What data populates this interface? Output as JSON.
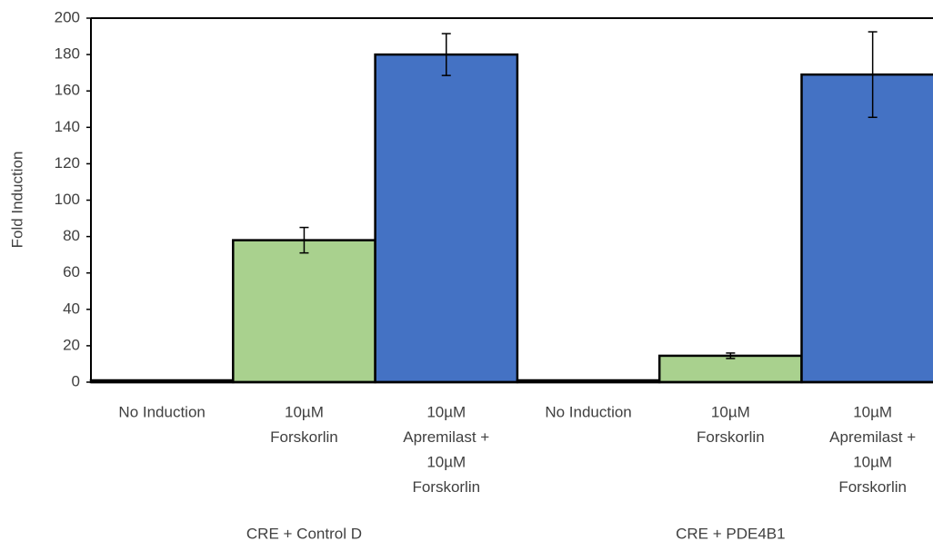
{
  "chart_data": {
    "type": "bar",
    "y_label": "Fold Induction",
    "categories": [
      [
        "No Induction"
      ],
      [
        "10µM",
        "Forskorlin"
      ],
      [
        "10µM",
        "Apremilast +",
        "10µM",
        "Forskorlin"
      ],
      [
        "No Induction"
      ],
      [
        "10µM",
        "Forskorlin"
      ],
      [
        "10µM",
        "Apremilast +",
        "10µM",
        "Forskorlin"
      ]
    ],
    "groups": [
      "CRE + Control D",
      "CRE + PDE4B1"
    ],
    "values": [
      1,
      78,
      180,
      1,
      14.5,
      169
    ],
    "errors": [
      0,
      7,
      11.5,
      0,
      1.5,
      23.5
    ],
    "colors": [
      "#ffffff",
      "#a9d18e",
      "#4472c4",
      "#ffffff",
      "#a9d18e",
      "#4472c4"
    ],
    "ylim": [
      0,
      200
    ],
    "yticks": [
      0,
      20,
      40,
      60,
      80,
      100,
      120,
      140,
      160,
      180,
      200
    ],
    "grid": false
  }
}
